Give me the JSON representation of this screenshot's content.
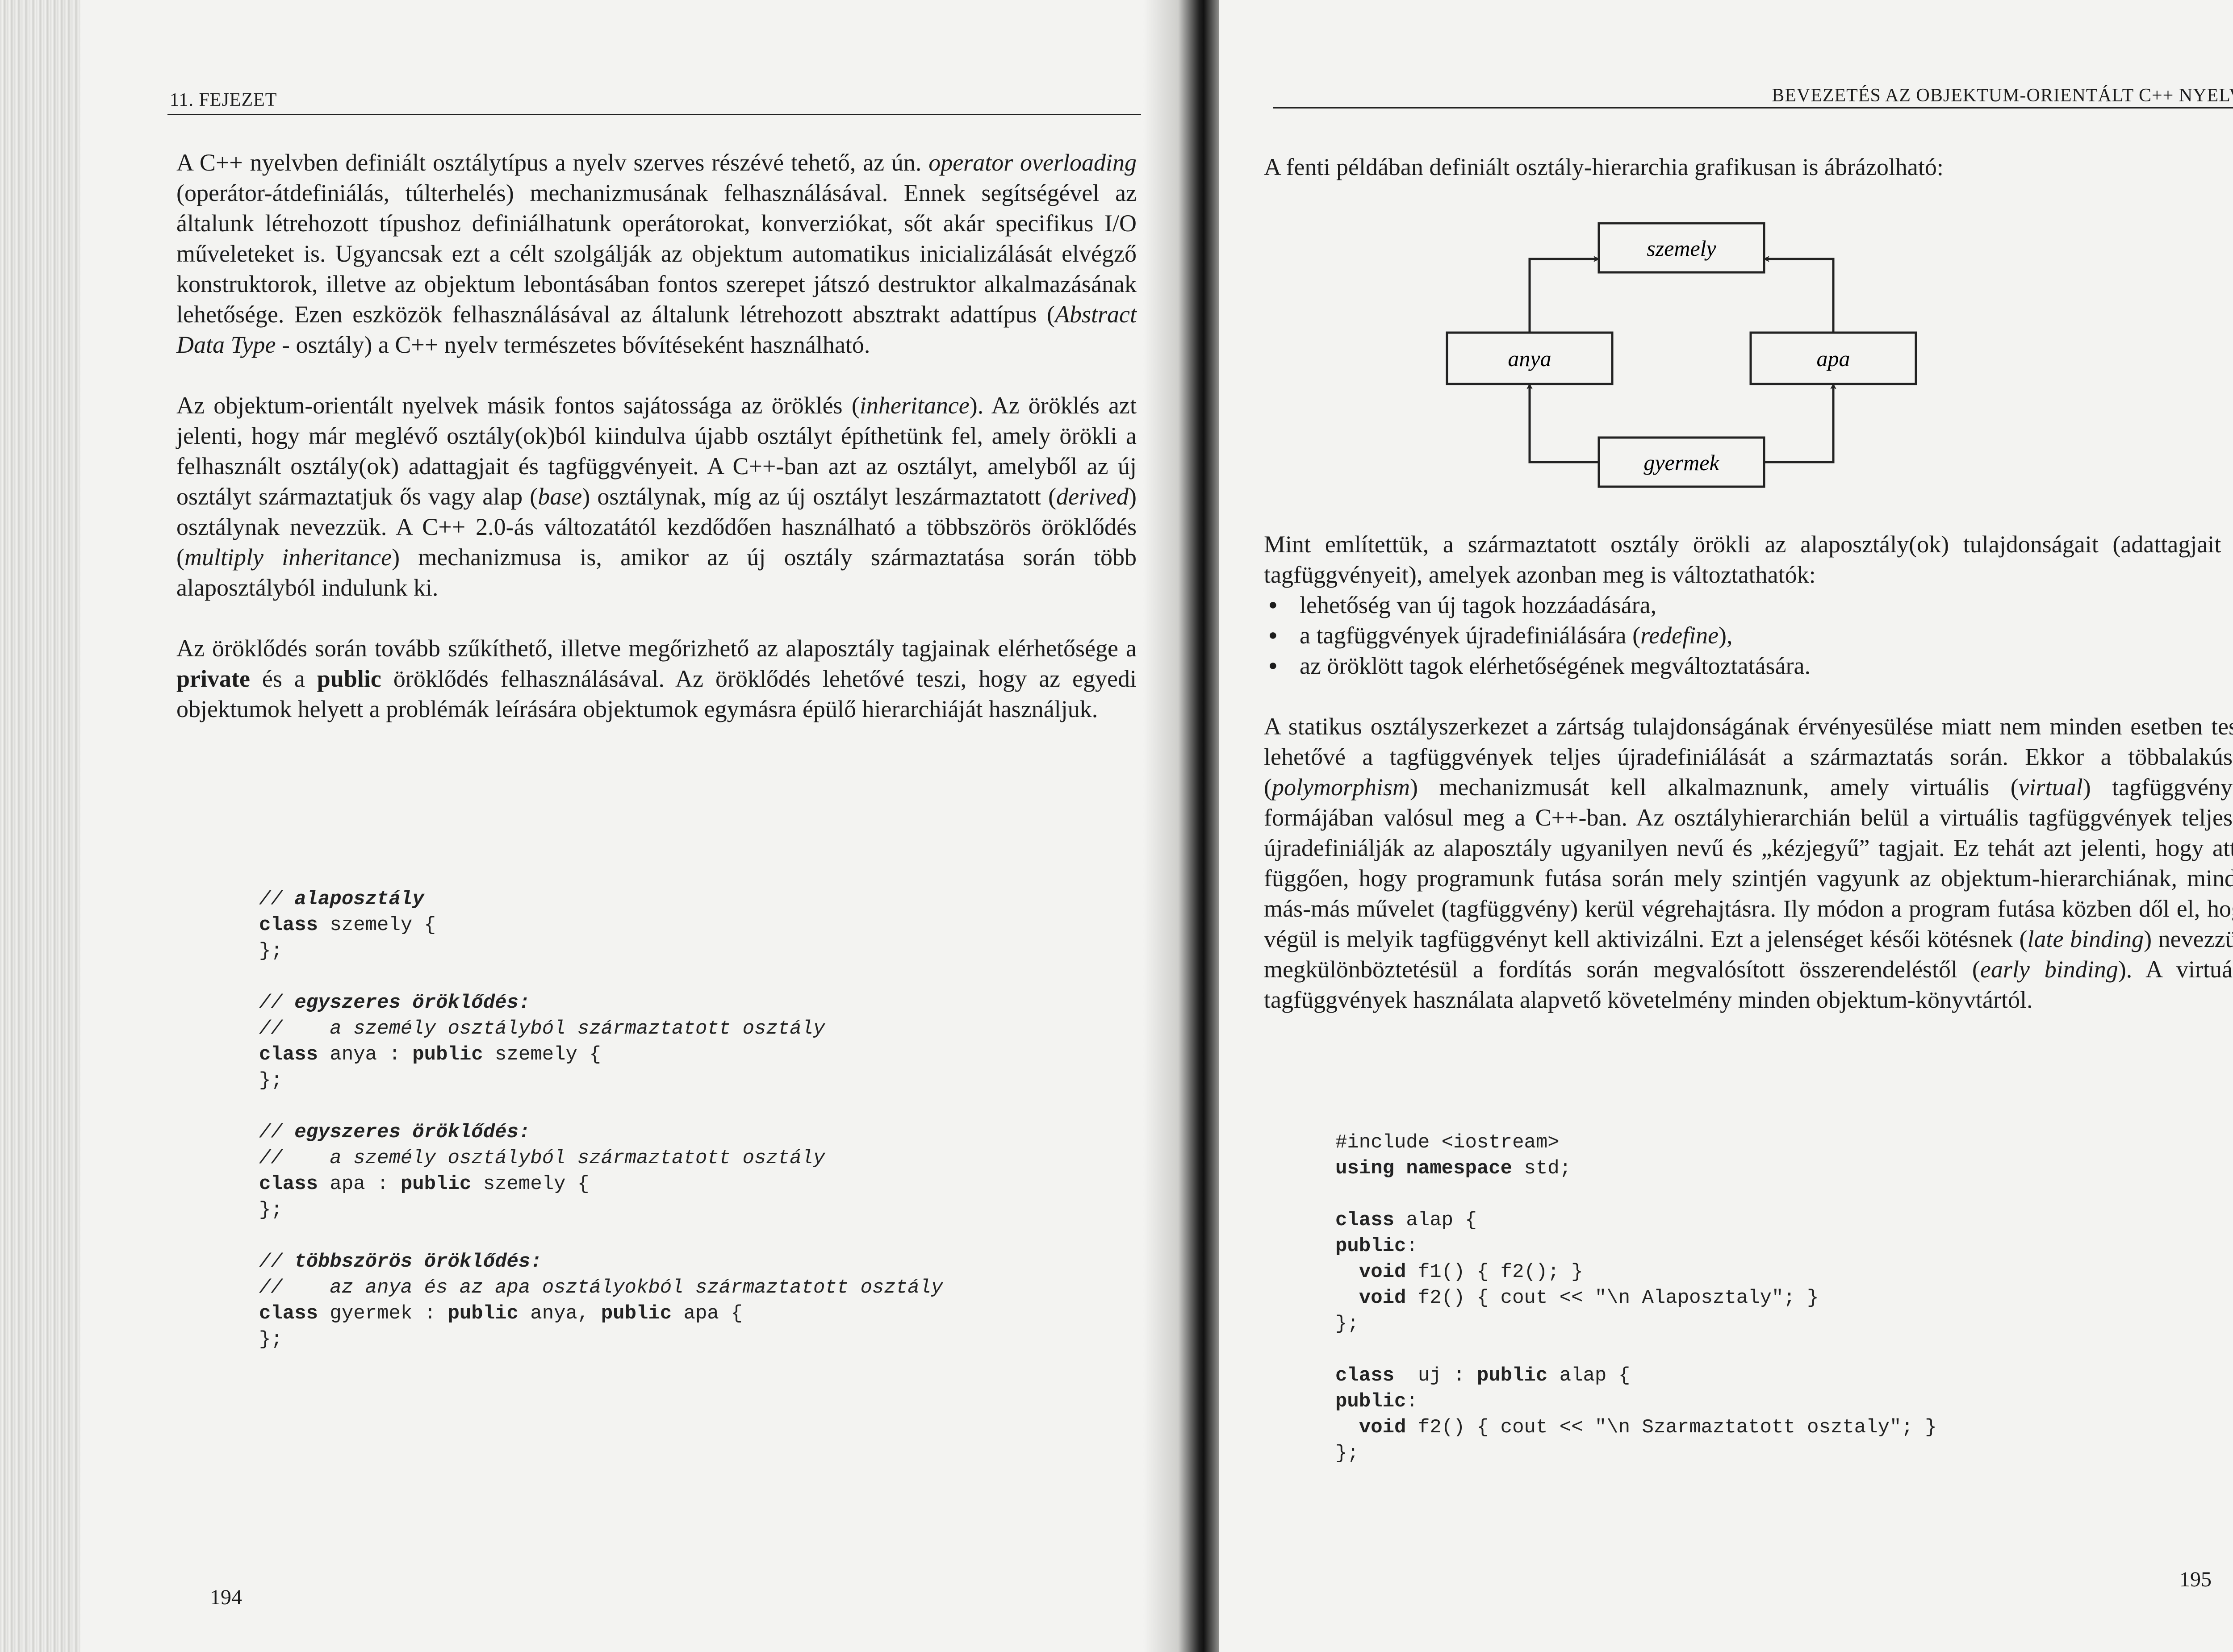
{
  "left_page": {
    "running_head": "11. FEJEZET",
    "page_number": "194",
    "paragraphs": [
      [
        {
          "t": "A C++ nyelvben definiált osztálytípus a nyelv szerves részévé tehető, az ún. "
        },
        {
          "t": "operator overloading",
          "i": true
        },
        {
          "t": " (operátor-átdefiniálás, túlterhelés) mechanizmusának felhasználásával. Ennek segítségével az általunk létrehozott típushoz definiálhatunk operátorokat, konverziókat, sőt akár specifikus I/O műveleteket is. Ugyancsak ezt a célt szolgálják az objektum automatikus inicializálását elvégző konstruktorok, illetve az objektum lebontásában fontos szerepet játszó destruktor alkalmazásának lehetősége. Ezen eszközök felhasználásával az általunk létrehozott absztrakt adattípus ("
        },
        {
          "t": "Abstract Data Type",
          "i": true
        },
        {
          "t": " - osztály) a C++ nyelv természetes bővítéseként használható."
        }
      ],
      [
        {
          "t": "Az objektum-orientált nyelvek másik fontos sajátossága az öröklés ("
        },
        {
          "t": "inheritance",
          "i": true
        },
        {
          "t": "). Az öröklés azt jelenti, hogy már meglévő osztály(ok)ból kiindulva újabb osztályt építhetünk fel, amely örökli a felhasznált osztály(ok) adattagjait és tagfüggvényeit. A C++-ban azt az osztályt, amelyből az új osztályt származtatjuk ős vagy alap ("
        },
        {
          "t": "base",
          "i": true
        },
        {
          "t": ") osztálynak, míg az új osztályt leszármaztatott ("
        },
        {
          "t": "derived",
          "i": true
        },
        {
          "t": ") osztálynak nevezzük. A C++ 2.0-ás változatától kezdődően használható a többszörös öröklődés ("
        },
        {
          "t": "multiply inheritance",
          "i": true
        },
        {
          "t": ") mechanizmusa is, amikor az új osztály származtatása során több alaposztályból indulunk ki."
        }
      ],
      [
        {
          "t": "Az öröklődés során tovább szűkíthető, illetve megőrizhető az alaposztály tagjainak elérhetősége a "
        },
        {
          "t": "private",
          "b": true
        },
        {
          "t": " és a "
        },
        {
          "t": "public",
          "b": true
        },
        {
          "t": " öröklődés felhasználásával. Az öröklődés lehetővé teszi, hogy az egyedi objektumok helyett a problémák leírására objektumok egymásra épülő hierarchiáját használjuk."
        }
      ]
    ],
    "code": [
      [
        {
          "t": "// ",
          "c": "cm"
        },
        {
          "t": "alaposztály",
          "c": "cmb"
        }
      ],
      [
        {
          "t": "class",
          "c": "kw"
        },
        {
          "t": " szemely {"
        }
      ],
      [
        {
          "t": "};"
        }
      ],
      [],
      [
        {
          "t": "// ",
          "c": "cm"
        },
        {
          "t": "egyszeres öröklődés:",
          "c": "cmb"
        }
      ],
      [
        {
          "t": "//    a személy osztályból származtatott osztály",
          "c": "cm"
        }
      ],
      [
        {
          "t": "class",
          "c": "kw"
        },
        {
          "t": " anya : "
        },
        {
          "t": "public",
          "c": "kw"
        },
        {
          "t": " szemely {"
        }
      ],
      [
        {
          "t": "};"
        }
      ],
      [],
      [
        {
          "t": "// ",
          "c": "cm"
        },
        {
          "t": "egyszeres öröklődés:",
          "c": "cmb"
        }
      ],
      [
        {
          "t": "//    a személy osztályból származtatott osztály",
          "c": "cm"
        }
      ],
      [
        {
          "t": "class",
          "c": "kw"
        },
        {
          "t": " apa : "
        },
        {
          "t": "public",
          "c": "kw"
        },
        {
          "t": " szemely {"
        }
      ],
      [
        {
          "t": "};"
        }
      ],
      [],
      [
        {
          "t": "// ",
          "c": "cm"
        },
        {
          "t": "többszörös öröklődés:",
          "c": "cmb"
        }
      ],
      [
        {
          "t": "//    az anya és az apa osztályokból származtatott osztály",
          "c": "cm"
        }
      ],
      [
        {
          "t": "class",
          "c": "kw"
        },
        {
          "t": " gyermek : "
        },
        {
          "t": "public",
          "c": "kw"
        },
        {
          "t": " anya, "
        },
        {
          "t": "public",
          "c": "kw"
        },
        {
          "t": " apa {"
        }
      ],
      [
        {
          "t": "};"
        }
      ]
    ]
  },
  "right_page": {
    "running_head": "BEVEZETÉS AZ OBJEKTUM-ORIENTÁLT C++ NYELVBE",
    "page_number": "195",
    "intro": "A fenti példában definiált osztály-hierarchia grafikusan is ábrázolható:",
    "diagram": {
      "szemely": "szemely",
      "anya": "anya",
      "apa": "apa",
      "gyermek": "gyermek"
    },
    "para_mint": "Mint említettük, a származtatott osztály örökli az alaposztály(ok) tulajdonságait (adattagjait és tagfüggvényeit), amelyek azonban meg is változtathatók:",
    "bullets": [
      [
        {
          "t": "lehetőség van új tagok hozzáadására,"
        }
      ],
      [
        {
          "t": "a tagfüggvények újradefiniálására ("
        },
        {
          "t": "redefine",
          "i": true
        },
        {
          "t": "),"
        }
      ],
      [
        {
          "t": "az öröklött tagok elérhetőségének megváltoztatására."
        }
      ]
    ],
    "para_static": [
      {
        "t": "A statikus osztályszerkezet a zártság tulajdonságának érvényesülése miatt nem minden esetben teszi lehetővé a tagfüggvények teljes újradefiniálását a származtatás során. Ekkor a többalakúság ("
      },
      {
        "t": "polymorphism",
        "i": true
      },
      {
        "t": ") mechanizmusát kell alkalmaznunk, amely virtuális ("
      },
      {
        "t": "virtual",
        "i": true
      },
      {
        "t": ") tagfüggvények formájában valósul meg a C++-ban. Az osztályhierarchián belül a virtuális tagfüggvények teljesen újradefiniálják az alaposztály ugyanilyen nevű és „kézjegyű” tagjait. Ez tehát azt jelenti, hogy attól függően, hogy programunk futása során mely szintjén vagyunk az objektum-hierarchiának, mindig más-más művelet (tagfüggvény) kerül végrehajtásra. Ily módon a program futása közben dől el, hogy végül is melyik tagfüggvényt kell aktivizálni. Ezt a jelenséget késői kötésnek ("
      },
      {
        "t": "late binding",
        "i": true
      },
      {
        "t": ") nevezzük, megkülönböztetésül a fordítás során megvalósított összerendeléstől ("
      },
      {
        "t": "early binding",
        "i": true
      },
      {
        "t": "). A virtuális tagfüggvények használata alapvető követelmény minden objektum-könyvtártól."
      }
    ],
    "code": [
      [
        {
          "t": "#include <iostream>"
        }
      ],
      [
        {
          "t": "using namespace",
          "c": "kw"
        },
        {
          "t": " std;"
        }
      ],
      [],
      [
        {
          "t": "class",
          "c": "kw"
        },
        {
          "t": " alap {"
        }
      ],
      [
        {
          "t": "public",
          "c": "kw"
        },
        {
          "t": ":"
        }
      ],
      [
        {
          "t": "  "
        },
        {
          "t": "void",
          "c": "kw"
        },
        {
          "t": " f1() { f2(); }"
        }
      ],
      [
        {
          "t": "  "
        },
        {
          "t": "void",
          "c": "kw"
        },
        {
          "t": " f2() { cout << \"\\n Alaposztaly\"; }"
        }
      ],
      [
        {
          "t": "};"
        }
      ],
      [],
      [
        {
          "t": "class",
          "c": "kw"
        },
        {
          "t": "  uj : "
        },
        {
          "t": "public",
          "c": "kw"
        },
        {
          "t": " alap {"
        }
      ],
      [
        {
          "t": "public",
          "c": "kw"
        },
        {
          "t": ":"
        }
      ],
      [
        {
          "t": "  "
        },
        {
          "t": "void",
          "c": "kw"
        },
        {
          "t": " f2() { cout << \"\\n Szarmaztatott osztaly\"; }"
        }
      ],
      [
        {
          "t": "};"
        }
      ]
    ]
  }
}
